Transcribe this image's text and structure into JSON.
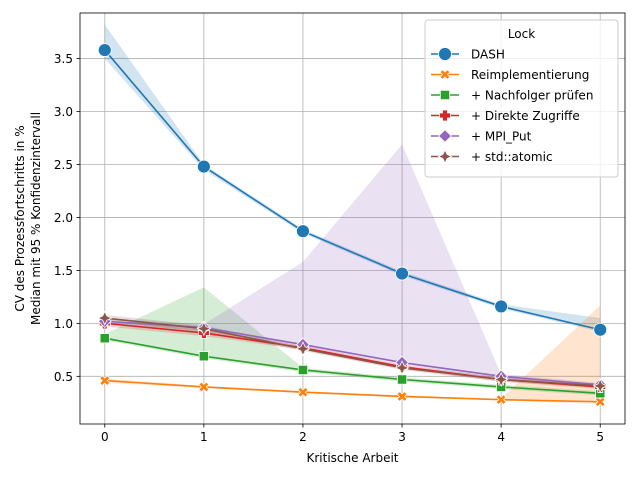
{
  "chart_data": {
    "type": "line",
    "xlabel": "Kritische Arbeit",
    "ylabel_lines": [
      "CV des Prozessfortschritts in %",
      "Median mit 95 % Konfidenzintervall"
    ],
    "x": [
      0,
      1,
      2,
      3,
      4,
      5
    ],
    "x_ticks": [
      "0",
      "1",
      "2",
      "3",
      "4",
      "5"
    ],
    "y_ticks": [
      "0.5",
      "1.0",
      "1.5",
      "2.0",
      "2.5",
      "3.0",
      "3.5"
    ],
    "xlim": [
      -0.25,
      5.25
    ],
    "ylim": [
      0.05,
      3.93
    ],
    "grid": true,
    "legend": {
      "title": "Lock",
      "placement": "top-right"
    },
    "series": [
      {
        "name": "DASH",
        "color": "#1f77b4",
        "marker": "circle",
        "values": [
          3.58,
          2.48,
          1.87,
          1.47,
          1.16,
          0.94
        ],
        "ci_low": [
          3.5,
          2.45,
          1.85,
          1.45,
          1.14,
          0.92
        ],
        "ci_high": [
          3.82,
          2.5,
          1.89,
          1.49,
          1.18,
          1.05
        ]
      },
      {
        "name": "Reimplementierung",
        "color": "#ff7f0e",
        "marker": "x",
        "values": [
          0.46,
          0.4,
          0.35,
          0.31,
          0.28,
          0.26
        ],
        "ci_low": [
          0.44,
          0.39,
          0.34,
          0.3,
          0.27,
          0.24
        ],
        "ci_high": [
          0.48,
          0.41,
          0.36,
          0.32,
          0.29,
          1.17
        ]
      },
      {
        "name": "+ Nachfolger prüfen",
        "color": "#2ca02c",
        "marker": "square",
        "values": [
          0.86,
          0.69,
          0.56,
          0.47,
          0.4,
          0.34
        ],
        "ci_low": [
          0.84,
          0.67,
          0.54,
          0.45,
          0.38,
          0.32
        ],
        "ci_high": [
          0.9,
          1.34,
          0.58,
          0.49,
          0.42,
          0.36
        ]
      },
      {
        "name": "+ Direkte Zugriffe",
        "color": "#d62728",
        "marker": "plus",
        "values": [
          1.0,
          0.91,
          0.77,
          0.59,
          0.47,
          0.4
        ],
        "ci_low": [
          0.97,
          0.88,
          0.75,
          0.57,
          0.45,
          0.38
        ],
        "ci_high": [
          1.03,
          0.94,
          0.79,
          0.61,
          0.49,
          0.42
        ]
      },
      {
        "name": "+ MPI_Put",
        "color": "#9467bd",
        "marker": "diamond",
        "values": [
          1.02,
          0.96,
          0.8,
          0.63,
          0.5,
          0.42
        ],
        "ci_low": [
          0.99,
          0.93,
          0.78,
          0.61,
          0.48,
          0.4
        ],
        "ci_high": [
          1.05,
          0.99,
          1.58,
          2.69,
          0.52,
          0.44
        ]
      },
      {
        "name": "+ std::atomic",
        "color": "#8c564b",
        "marker": "star",
        "values": [
          1.05,
          0.95,
          0.76,
          0.58,
          0.47,
          0.41
        ],
        "ci_low": [
          1.02,
          0.92,
          0.74,
          0.56,
          0.45,
          0.39
        ],
        "ci_high": [
          1.08,
          0.98,
          0.78,
          0.6,
          0.49,
          0.43
        ]
      }
    ]
  }
}
